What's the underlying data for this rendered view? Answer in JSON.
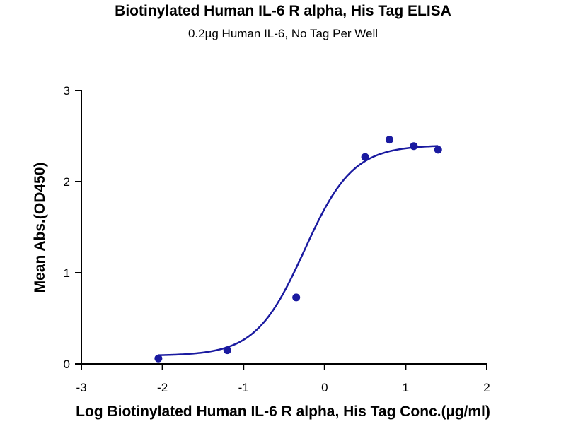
{
  "chart_data": {
    "type": "scatter",
    "title": "Biotinylated Human IL-6 R alpha, His Tag ELISA",
    "subtitle": "0.2µg Human IL-6, No Tag Per Well",
    "xlabel": "Log Biotinylated Human IL-6 R alpha, His Tag Conc.(µg/ml)",
    "ylabel": "Mean Abs.(OD450)",
    "xlim": [
      -3,
      2
    ],
    "ylim": [
      0,
      3
    ],
    "x_ticks": [
      "-3",
      "-2",
      "-1",
      "0",
      "1",
      "2"
    ],
    "y_ticks": [
      "0",
      "1",
      "2",
      "3"
    ],
    "grid": false,
    "color": "#1a1aa0",
    "series": [
      {
        "x": [
          -2.05,
          -1.2,
          -0.35,
          0.5,
          0.8,
          1.1,
          1.4
        ],
        "y": [
          0.06,
          0.15,
          0.73,
          2.27,
          2.46,
          2.39,
          2.35
        ]
      }
    ],
    "fit": {
      "model": "4PL",
      "bottom": 0.09,
      "top": 2.4,
      "log_ec50": -0.25,
      "hill_slope": 1.45,
      "x_range": [
        -2.05,
        1.4
      ]
    }
  }
}
